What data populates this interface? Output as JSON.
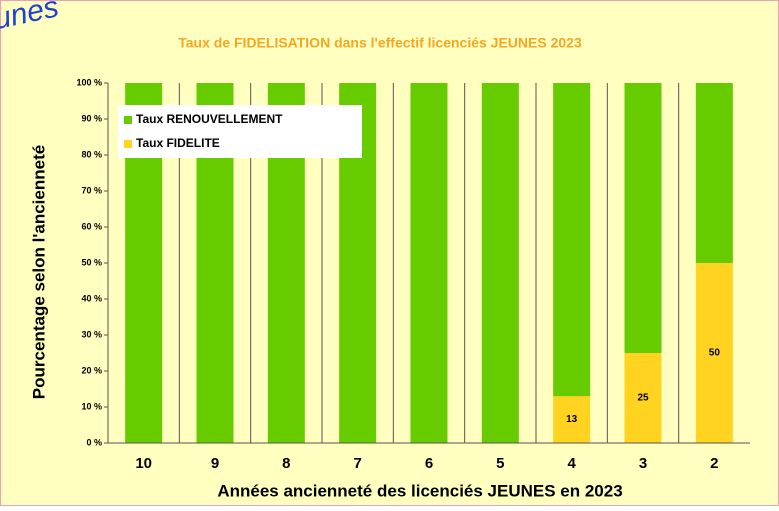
{
  "chart_data": {
    "type": "bar",
    "stacked": true,
    "corner_text": "unes",
    "title": "Taux de FIDELISATION dans l'effectif licenciés JEUNES 2023",
    "x_label": "Années ancienneté des licenciés JEUNES en 2023",
    "y_label": "Pourcentage selon l'ancienneté",
    "categories": [
      "10",
      "9",
      "8",
      "7",
      "6",
      "5",
      "4",
      "3",
      "2"
    ],
    "series": [
      {
        "name": "Taux FIDELITE",
        "color": "#ffd320",
        "values": [
          0,
          0,
          0,
          0,
          0,
          0,
          13,
          25,
          50
        ]
      },
      {
        "name": "Taux RENOUVELLEMENT",
        "color": "#66cc00",
        "values": [
          100,
          100,
          100,
          100,
          100,
          100,
          87,
          75,
          50
        ]
      }
    ],
    "ylim": [
      0,
      100
    ],
    "yticks": [
      {
        "value": 0,
        "label": "0 %"
      },
      {
        "value": 10,
        "label": "10 %"
      },
      {
        "value": 20,
        "label": "20 %"
      },
      {
        "value": 30,
        "label": "30 %"
      },
      {
        "value": 40,
        "label": "40 %"
      },
      {
        "value": 50,
        "label": "50 %"
      },
      {
        "value": 60,
        "label": "60 %"
      },
      {
        "value": 70,
        "label": "70 %"
      },
      {
        "value": 80,
        "label": "80 %"
      },
      {
        "value": 90,
        "label": "90 %"
      },
      {
        "value": 100,
        "label": "100 %"
      }
    ],
    "legend": "top-left"
  }
}
